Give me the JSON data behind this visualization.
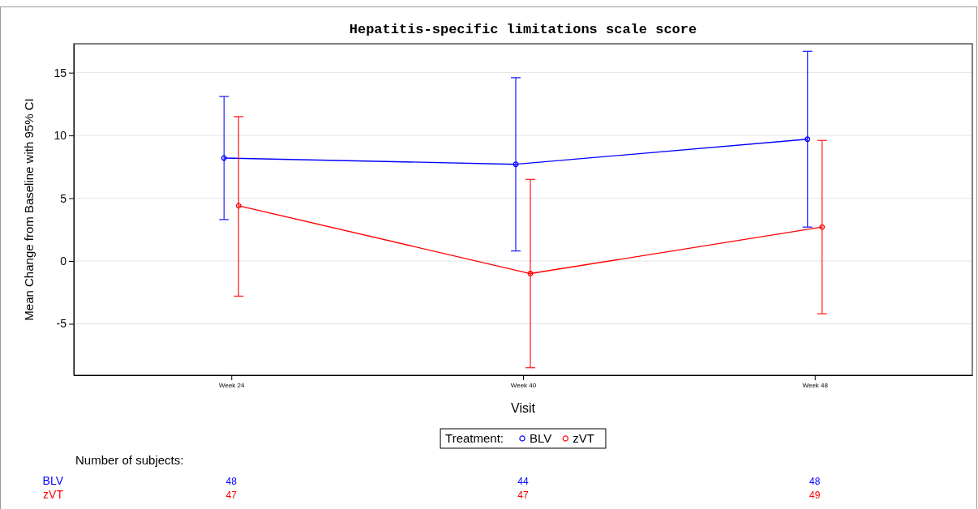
{
  "chart_data": {
    "type": "line",
    "title": "Hepatitis-specific limitations scale score",
    "xlabel": "Visit",
    "ylabel": "Mean Change from Baseline with 95% CI",
    "legend_title": "Treatment:",
    "legend": "bottom",
    "grid": "y",
    "marker": "circle",
    "categories": [
      "Week 24",
      "Week 40",
      "Week 48"
    ],
    "ylim": [
      -9.1,
      17.3
    ],
    "yticks": [
      -5,
      0,
      5,
      10,
      15
    ],
    "series": [
      {
        "name": "BLV",
        "color": "#0000ff",
        "values": [
          8.2,
          7.7,
          9.7
        ],
        "errors": [
          [
            3.3,
            13.1
          ],
          [
            0.8,
            14.6
          ],
          [
            2.7,
            16.7
          ]
        ]
      },
      {
        "name": "zVT",
        "color": "#ff0000",
        "values": [
          4.4,
          -1.0,
          2.7
        ],
        "errors": [
          [
            -2.8,
            11.5
          ],
          [
            -8.5,
            6.5
          ],
          [
            -4.2,
            9.6
          ]
        ]
      }
    ],
    "annotations": [
      "Number of subjects:",
      "48",
      "44",
      "48",
      "47",
      "47",
      "49"
    ]
  }
}
